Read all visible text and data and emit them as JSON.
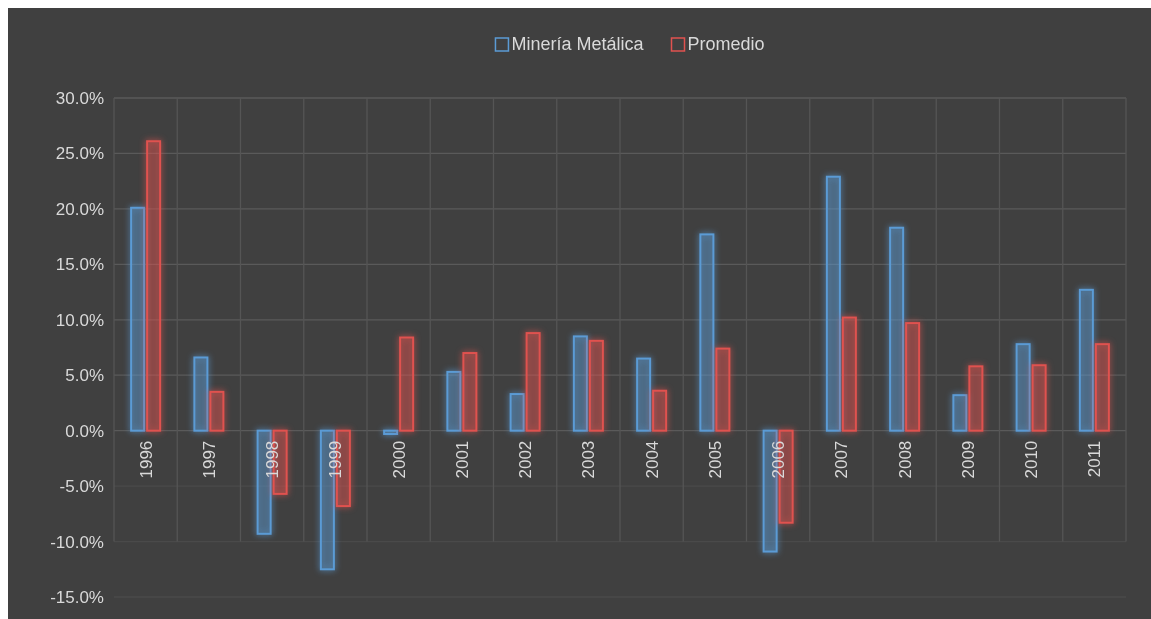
{
  "chart_data": {
    "type": "bar",
    "categories": [
      "1996",
      "1997",
      "1998",
      "1999",
      "2000",
      "2001",
      "2002",
      "2003",
      "2004",
      "2005",
      "2006",
      "2007",
      "2008",
      "2009",
      "2010",
      "2011"
    ],
    "series": [
      {
        "name": "Minería Metálica",
        "color": "#5b9bd5",
        "values": [
          20.1,
          6.6,
          -9.3,
          -12.5,
          -0.3,
          5.3,
          3.3,
          8.5,
          6.5,
          17.7,
          -10.9,
          22.9,
          18.3,
          3.2,
          7.8,
          12.7
        ]
      },
      {
        "name": "Promedio",
        "color": "#e0524f",
        "values": [
          26.1,
          3.5,
          -5.7,
          -6.8,
          8.4,
          7.0,
          8.8,
          8.1,
          3.6,
          7.4,
          -8.3,
          10.2,
          9.7,
          5.8,
          5.9,
          7.8
        ]
      }
    ],
    "ylim": [
      -15,
      30
    ],
    "yticks": [
      {
        "value": -15,
        "label": "-15.0%"
      },
      {
        "value": -10,
        "label": "-10.0%"
      },
      {
        "value": -5,
        "label": "-5.0%"
      },
      {
        "value": 0,
        "label": "0.0%"
      },
      {
        "value": 5,
        "label": "5.0%"
      },
      {
        "value": 10,
        "label": "10.0%"
      },
      {
        "value": 15,
        "label": "15.0%"
      },
      {
        "value": 20,
        "label": "20.0%"
      },
      {
        "value": 25,
        "label": "25.0%"
      },
      {
        "value": 30,
        "label": "30.0%"
      }
    ],
    "grid": true,
    "legend": "top"
  }
}
